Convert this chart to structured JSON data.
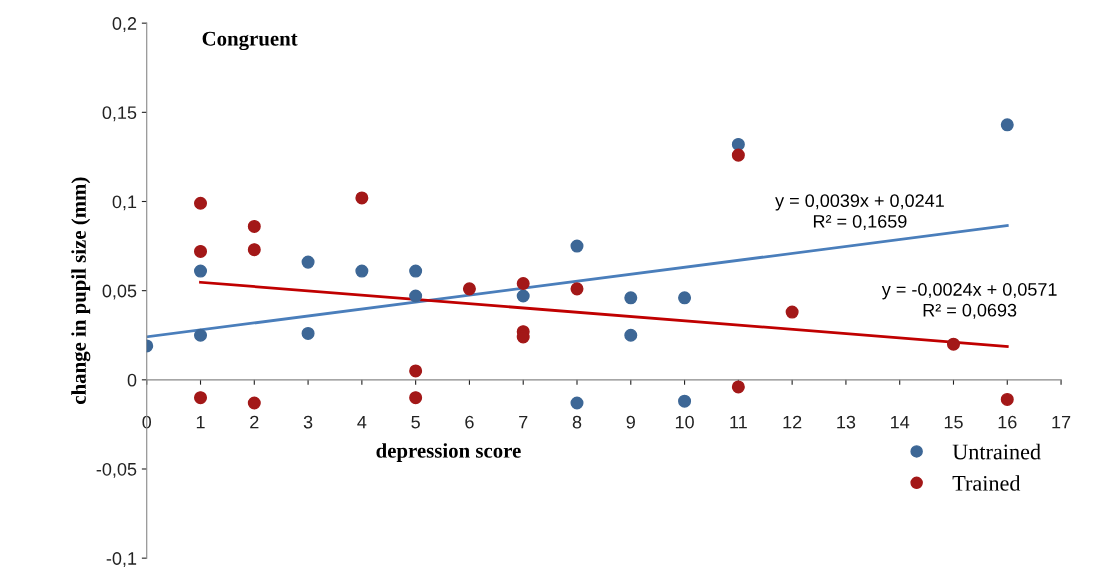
{
  "chart_data": {
    "type": "scatter",
    "title": "Congruent",
    "xlabel": "depression score",
    "ylabel": "change in pupil size (mm)",
    "xlim": [
      0,
      17
    ],
    "xticks": [
      0,
      1,
      2,
      3,
      4,
      5,
      6,
      7,
      8,
      9,
      10,
      11,
      12,
      13,
      14,
      15,
      16,
      17
    ],
    "ylim": [
      -0.1,
      0.2
    ],
    "yticks": [
      {
        "value": -0.1,
        "label": "-0,1"
      },
      {
        "value": -0.05,
        "label": "-0,05"
      },
      {
        "value": 0,
        "label": "0"
      },
      {
        "value": 0.05,
        "label": "0,05"
      },
      {
        "value": 0.1,
        "label": "0,1"
      },
      {
        "value": 0.15,
        "label": "0,15"
      },
      {
        "value": 0.2,
        "label": "0,2"
      }
    ],
    "grid": false,
    "legend": "bottom right",
    "series": [
      {
        "name": "Untrained",
        "color": "#3d6796",
        "marker": "circle",
        "x": [
          0,
          1,
          1,
          3,
          3,
          4,
          5,
          5,
          7,
          8,
          8,
          9,
          9,
          10,
          10,
          11,
          16
        ],
        "values": [
          0.019,
          0.025,
          0.061,
          0.026,
          0.066,
          0.061,
          0.061,
          0.047,
          0.047,
          0.075,
          -0.013,
          0.046,
          0.025,
          0.046,
          -0.012,
          0.132,
          0.143
        ]
      },
      {
        "name": "Trained",
        "color": "#a31818",
        "marker": "circle",
        "x": [
          1,
          1,
          1,
          2,
          2,
          2,
          4,
          5,
          5,
          6,
          7,
          7,
          7,
          8,
          11,
          11,
          12,
          15,
          16
        ],
        "values": [
          0.099,
          0.072,
          -0.01,
          0.086,
          0.073,
          -0.013,
          0.102,
          0.005,
          -0.01,
          0.051,
          0.054,
          0.027,
          0.024,
          0.051,
          0.126,
          -0.004,
          0.038,
          0.02,
          -0.011
        ]
      },
      {
        "type": "line",
        "color": "#4a7ebb",
        "x": [
          0,
          16
        ],
        "values": [
          0.0241,
          0.0865
        ]
      },
      {
        "type": "line",
        "color": "#c00000",
        "x": [
          1,
          16
        ],
        "values": [
          0.0547,
          0.0187
        ]
      }
    ],
    "annotations": [
      "y = 0,0039x + 0,0241\nR² = 0,1659",
      "y = -0,0024x + 0,0571\nR² = 0,0693"
    ]
  }
}
